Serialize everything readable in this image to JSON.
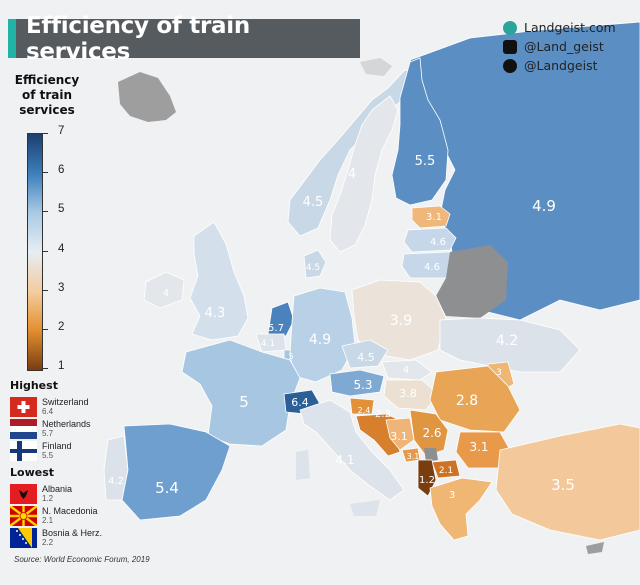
{
  "title": "Efficiency of train services",
  "social": [
    {
      "icon": "globe-icon",
      "text": "Landgeist.com"
    },
    {
      "icon": "instagram-icon",
      "text": "@Land_geist"
    },
    {
      "icon": "twitter-icon",
      "text": "@Landgeist"
    }
  ],
  "legend": {
    "title_lines": [
      "Efficiency",
      "of train",
      "services"
    ],
    "scale": [
      "7",
      "6",
      "5",
      "4",
      "3",
      "2",
      "1"
    ]
  },
  "highest": {
    "heading": "Highest",
    "entries": [
      {
        "name": "Switzerland",
        "value": "6.4",
        "flag": "flag-switzerland-icon"
      },
      {
        "name": "Netherlands",
        "value": "5.7",
        "flag": "flag-netherlands-icon"
      },
      {
        "name": "Finland",
        "value": "5.5",
        "flag": "flag-finland-icon"
      }
    ]
  },
  "lowest": {
    "heading": "Lowest",
    "entries": [
      {
        "name": "Albania",
        "value": "1.2",
        "flag": "flag-albania-icon"
      },
      {
        "name": "N. Macedonia",
        "value": "2.1",
        "flag": "flag-north-macedonia-icon"
      },
      {
        "name": "Bosnia & Herz.",
        "value": "2.2",
        "flag": "flag-bosnia-icon"
      }
    ]
  },
  "source": "Source: World Economic Forum, 2019",
  "map_values": [
    {
      "value": "5.5",
      "color": "#5b8fc4"
    },
    {
      "value": "4",
      "color": "#e3e6ea"
    },
    {
      "value": "4.5",
      "color": "#c9d8e7"
    },
    {
      "value": "4.9",
      "color": "#b8d1e6"
    },
    {
      "value": "3.1",
      "color": "#efb779"
    },
    {
      "value": "4.6",
      "color": "#c5d7e8"
    },
    {
      "value": "4.6",
      "color": "#c5d7e8"
    },
    {
      "value": "4.5",
      "color": "#c9d8e7"
    },
    {
      "value": "4",
      "color": "#e3e6ea"
    },
    {
      "value": "4.3",
      "color": "#d3dfeb"
    },
    {
      "value": "5.7",
      "color": "#4a82bd"
    },
    {
      "value": "4.1",
      "color": "#dde3ea"
    },
    {
      "value": "5",
      "color": "#a7c6e1"
    },
    {
      "value": "4.9",
      "color": "#b8d1e6"
    },
    {
      "value": "3.9",
      "color": "#ebe3da"
    },
    {
      "value": "4.2",
      "color": "#dbe2ea"
    },
    {
      "value": "4.5",
      "color": "#c9d8e7"
    },
    {
      "value": "3",
      "color": "#f0b673"
    },
    {
      "value": "5",
      "color": "#a7c6e1"
    },
    {
      "value": "6.4",
      "color": "#2a5f98"
    },
    {
      "value": "5.3",
      "color": "#7ea9d3"
    },
    {
      "value": "4",
      "color": "#e3e6ea"
    },
    {
      "value": "3.8",
      "color": "#ece0d2"
    },
    {
      "value": "2.8",
      "color": "#e8a555"
    },
    {
      "value": "3.1",
      "color": "#e89a4a"
    },
    {
      "value": "2.4",
      "color": "#e2903a"
    },
    {
      "value": "2.2",
      "color": "#d67f2c"
    },
    {
      "value": "2.6",
      "color": "#e09540"
    },
    {
      "value": "3.1",
      "color": "#efb477"
    },
    {
      "value": "3.1",
      "color": "#e49a4c"
    },
    {
      "value": "2.1",
      "color": "#cc7326"
    },
    {
      "value": "1.2",
      "color": "#7a3d10"
    },
    {
      "value": "3",
      "color": "#f0b673"
    },
    {
      "value": "4.2",
      "color": "#dbe2ea"
    },
    {
      "value": "5.4",
      "color": "#6e9fcf"
    },
    {
      "value": "4.1",
      "color": "#dde3ea"
    },
    {
      "value": "3.5",
      "color": "#f3c99c"
    },
    {
      "value": "4.5",
      "color": "#c9d8e7"
    }
  ]
}
